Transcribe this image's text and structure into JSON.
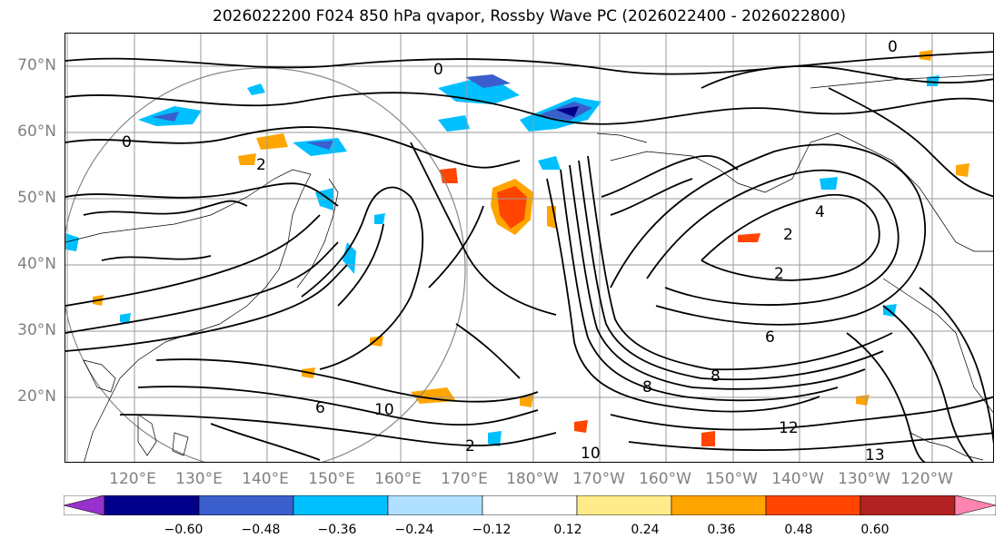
{
  "title": "2026022200 F024 850 hPa qvapor, Rossby Wave PC (2026022400 - 2026022800)",
  "lat_labels": [
    "70°N",
    "60°N",
    "50°N",
    "40°N",
    "30°N",
    "20°N"
  ],
  "lon_labels": [
    "120°E",
    "130°E",
    "140°E",
    "150°E",
    "160°E",
    "170°E",
    "180°W",
    "170°W",
    "160°W",
    "150°W",
    "140°W",
    "130°W",
    "120°W"
  ],
  "contour_labels": [
    "0",
    "2",
    "4",
    "6",
    "8",
    "10",
    "12",
    "13"
  ],
  "colorbar": {
    "colors": [
      "#9932cc",
      "#00008b",
      "#3a5fcd",
      "#00bfff",
      "#b0e0ff",
      "#ffffff",
      "#ffeb8a",
      "#ffa500",
      "#ff4500",
      "#b22222",
      "#ff85b0"
    ],
    "tick_labels": [
      "−0.60",
      "−0.48",
      "−0.36",
      "−0.24",
      "−0.12",
      "0.12",
      "0.24",
      "0.36",
      "0.48",
      "0.60"
    ]
  }
}
